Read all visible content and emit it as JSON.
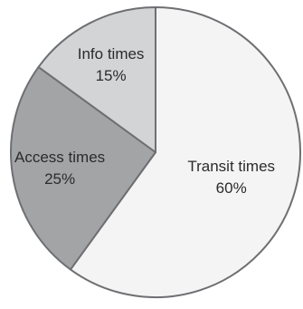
{
  "chart_data": {
    "type": "pie",
    "start_angle_deg": 0,
    "direction": "clockwise",
    "slices": [
      {
        "label": "Transit times",
        "value": 60,
        "value_label": "60%",
        "color": "#f4f4f4"
      },
      {
        "label": "Access times",
        "value": 25,
        "value_label": "25%",
        "color": "#a3a4a6"
      },
      {
        "label": "Info times",
        "value": 15,
        "value_label": "15%",
        "color": "#d3d4d6"
      }
    ],
    "edge_color": "#6e6f72",
    "title": "",
    "legend": "none"
  }
}
